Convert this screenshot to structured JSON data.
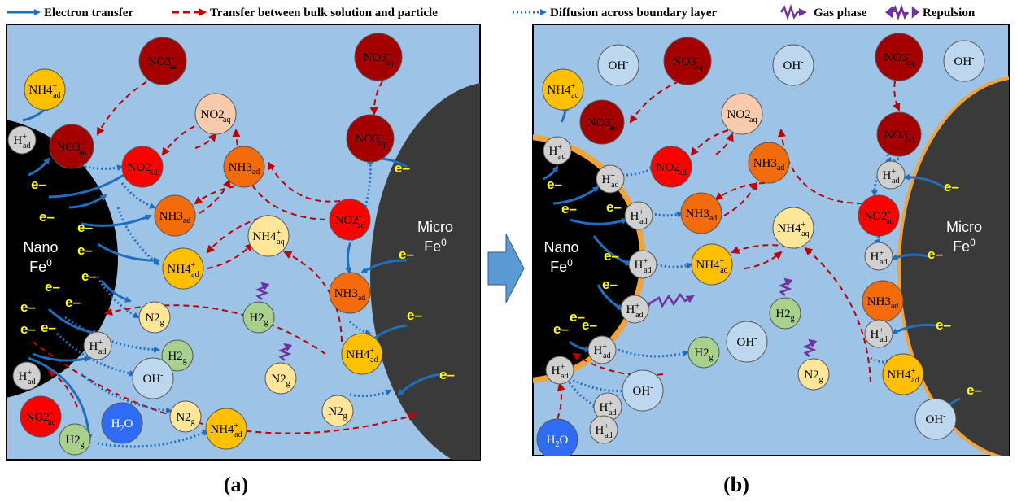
{
  "legend": [
    "Electron transfer",
    "Transfer between bulk solution and particle",
    "Diffusion across boundary layer",
    "Gas phase",
    "Repulsion"
  ],
  "electron": "e–",
  "panels": [
    {
      "label": "(a)",
      "nano": {
        "line1": "Nano",
        "line2": "Fe",
        "sup": "0"
      },
      "micro": {
        "line1": "Micro",
        "line2": "Fe",
        "sup": "0"
      },
      "nodes": [
        [
          [
            "NO3"
          ],
          [
            "-",
            "sup"
          ],
          [
            "aq",
            "sub"
          ]
        ],
        [
          [
            "NH4"
          ],
          [
            "+",
            "sup"
          ],
          [
            "ad",
            "sub"
          ]
        ],
        [
          [
            "NO2"
          ],
          [
            "-",
            "sup"
          ],
          [
            "aq",
            "sub"
          ]
        ],
        [
          [
            "NO3"
          ],
          [
            "-",
            "sup"
          ],
          [
            "aq",
            "sub"
          ]
        ],
        [
          [
            "NO3"
          ],
          [
            "-",
            "sup"
          ],
          [
            "ad",
            "sub"
          ]
        ],
        [
          [
            "H"
          ],
          [
            "+",
            "sup"
          ],
          [
            "ad",
            "sub"
          ]
        ],
        [
          [
            "NO2"
          ],
          [
            "-",
            "sup"
          ],
          [
            "ad",
            "sub"
          ]
        ],
        [
          [
            "NH3"
          ],
          [
            "ad",
            "sub"
          ]
        ],
        [
          [
            "NO3"
          ],
          [
            "-",
            "sup"
          ],
          [
            "aq",
            "sub"
          ]
        ],
        [
          [
            "NH3"
          ],
          [
            "ad",
            "sub"
          ]
        ],
        [
          [
            "NO2"
          ],
          [
            "-",
            "sup"
          ],
          [
            "ad",
            "sub"
          ]
        ],
        [
          [
            "NH4"
          ],
          [
            "+",
            "sup"
          ],
          [
            "aq",
            "sub"
          ]
        ],
        [
          [
            "NH4"
          ],
          [
            "+",
            "sup"
          ],
          [
            "ad",
            "sub"
          ]
        ],
        [
          [
            "NH3"
          ],
          [
            "ad",
            "sub"
          ]
        ],
        [
          [
            "N2"
          ],
          [
            "g",
            "sub"
          ]
        ],
        [
          [
            "H2"
          ],
          [
            "g",
            "sub"
          ]
        ],
        [
          [
            "H"
          ],
          [
            "+",
            "sup"
          ],
          [
            "ad",
            "sub"
          ]
        ],
        [
          [
            "H2"
          ],
          [
            "g",
            "sub"
          ]
        ],
        [
          [
            "NH4"
          ],
          [
            "+",
            "sup"
          ],
          [
            "ad",
            "sub"
          ]
        ],
        [
          [
            "H"
          ],
          [
            "+",
            "sup"
          ],
          [
            "ad",
            "sub"
          ]
        ],
        [
          [
            "OH"
          ],
          [
            "-",
            "sup"
          ]
        ],
        [
          [
            "N2"
          ],
          [
            "g",
            "sub"
          ]
        ],
        [
          [
            "NO2"
          ],
          [
            "-",
            "sup"
          ],
          [
            "ad",
            "sub"
          ]
        ],
        [
          [
            "H"
          ],
          [
            "2",
            "sub"
          ],
          [
            "O"
          ]
        ],
        [
          [
            "N2"
          ],
          [
            "g",
            "sub"
          ]
        ],
        [
          [
            "NH4"
          ],
          [
            "+",
            "sup"
          ],
          [
            "ad",
            "sub"
          ]
        ],
        [
          [
            "H2"
          ],
          [
            "g",
            "sub"
          ]
        ],
        [
          [
            "N2"
          ],
          [
            "g",
            "sub"
          ]
        ]
      ]
    },
    {
      "label": "(b)",
      "nano": {
        "line1": "Nano",
        "line2": "Fe",
        "sup": "0"
      },
      "micro": {
        "line1": "Micro",
        "line2": "Fe",
        "sup": "0"
      },
      "nodes": [
        [
          [
            "OH"
          ],
          [
            "-",
            "sup"
          ]
        ],
        [
          [
            "NO3"
          ],
          [
            "-",
            "sup"
          ],
          [
            "aq",
            "sub"
          ]
        ],
        [
          [
            "OH"
          ],
          [
            "-",
            "sup"
          ]
        ],
        [
          [
            "NO3"
          ],
          [
            "-",
            "sup"
          ],
          [
            "aq",
            "sub"
          ]
        ],
        [
          [
            "OH"
          ],
          [
            "-",
            "sup"
          ]
        ],
        [
          [
            "NH4"
          ],
          [
            "+",
            "sup"
          ],
          [
            "ad",
            "sub"
          ]
        ],
        [
          [
            "NO3"
          ],
          [
            "-",
            "sup"
          ],
          [
            "ad",
            "sub"
          ]
        ],
        [
          [
            "NO2"
          ],
          [
            "-",
            "sup"
          ],
          [
            "aq",
            "sub"
          ]
        ],
        [
          [
            "NO3"
          ],
          [
            "-",
            "sup"
          ],
          [
            "ad",
            "sub"
          ]
        ],
        [
          [
            "H"
          ],
          [
            "+",
            "sup"
          ],
          [
            "ad",
            "sub"
          ]
        ],
        [
          [
            "H"
          ],
          [
            "+",
            "sup"
          ],
          [
            "ad",
            "sub"
          ]
        ],
        [
          [
            "NO2"
          ],
          [
            "-",
            "sup"
          ],
          [
            "ad",
            "sub"
          ]
        ],
        [
          [
            "NH3"
          ],
          [
            "ad",
            "sub"
          ]
        ],
        [
          [
            "H"
          ],
          [
            "+",
            "sup"
          ],
          [
            "ad",
            "sub"
          ]
        ],
        [
          [
            "H"
          ],
          [
            "+",
            "sup"
          ],
          [
            "ad",
            "sub"
          ]
        ],
        [
          [
            "NH3"
          ],
          [
            "ad",
            "sub"
          ]
        ],
        [
          [
            "NO2"
          ],
          [
            "-",
            "sup"
          ],
          [
            "ad",
            "sub"
          ]
        ],
        [
          [
            "NH4"
          ],
          [
            "+",
            "sup"
          ],
          [
            "aq",
            "sub"
          ]
        ],
        [
          [
            "H"
          ],
          [
            "+",
            "sup"
          ],
          [
            "ad",
            "sub"
          ]
        ],
        [
          [
            "NH4"
          ],
          [
            "+",
            "sup"
          ],
          [
            "ad",
            "sub"
          ]
        ],
        [
          [
            "H"
          ],
          [
            "+",
            "sup"
          ],
          [
            "ad",
            "sub"
          ]
        ],
        [
          [
            "NH3"
          ],
          [
            "ad",
            "sub"
          ]
        ],
        [
          [
            "H"
          ],
          [
            "+",
            "sup"
          ],
          [
            "ad",
            "sub"
          ]
        ],
        [
          [
            "H2"
          ],
          [
            "g",
            "sub"
          ]
        ],
        [
          [
            "OH"
          ],
          [
            "-",
            "sup"
          ]
        ],
        [
          [
            "H"
          ],
          [
            "+",
            "sup"
          ],
          [
            "ad",
            "sub"
          ]
        ],
        [
          [
            "H"
          ],
          [
            "+",
            "sup"
          ],
          [
            "ad",
            "sub"
          ]
        ],
        [
          [
            "H2"
          ],
          [
            "g",
            "sub"
          ]
        ],
        [
          [
            "N2"
          ],
          [
            "g",
            "sub"
          ]
        ],
        [
          [
            "NH4"
          ],
          [
            "+",
            "sup"
          ],
          [
            "ad",
            "sub"
          ]
        ],
        [
          [
            "H"
          ],
          [
            "+",
            "sup"
          ],
          [
            "ad",
            "sub"
          ]
        ],
        [
          [
            "OH"
          ],
          [
            "-",
            "sup"
          ]
        ],
        [
          [
            "H"
          ],
          [
            "+",
            "sup"
          ],
          [
            "ad",
            "sub"
          ]
        ],
        [
          [
            "H"
          ],
          [
            "2",
            "sub"
          ],
          [
            "O"
          ]
        ],
        [
          [
            "H"
          ],
          [
            "+",
            "sup"
          ],
          [
            "ad",
            "sub"
          ]
        ],
        [
          [
            "OH"
          ],
          [
            "-",
            "sup"
          ]
        ]
      ]
    }
  ]
}
